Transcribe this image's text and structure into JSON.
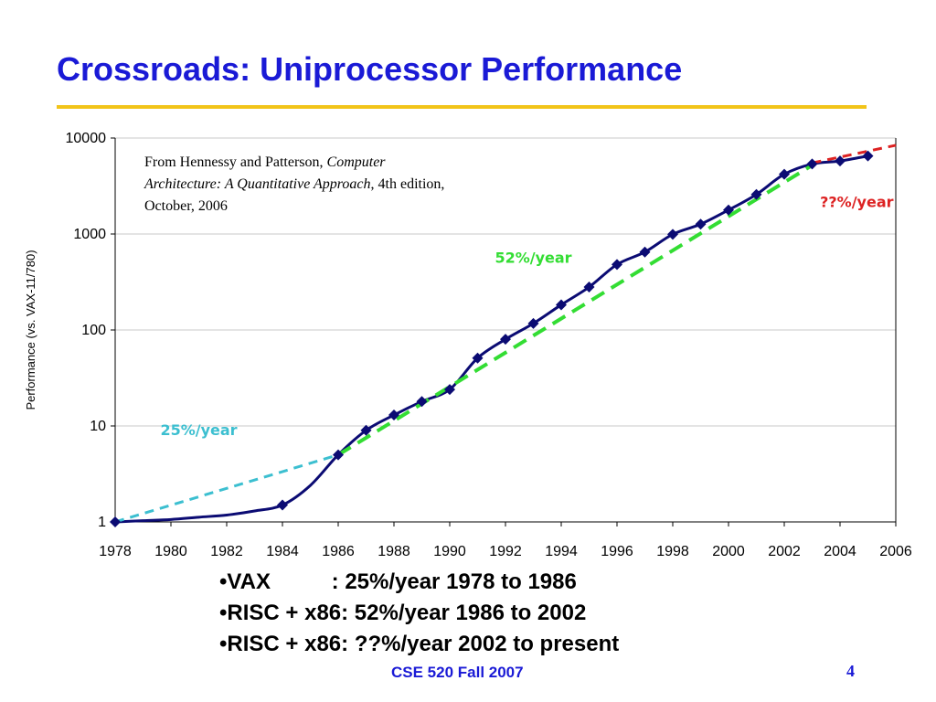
{
  "slide": {
    "title": "Crossroads: Uniprocessor Performance",
    "citation": {
      "prefix": "From Hennessy and Patterson, ",
      "book": "Computer Architecture: A Quantitative Approach",
      "suffix": ", 4th edition, October, 2006"
    },
    "bullets": [
      "VAX          : 25%/year 1978 to 1986",
      "RISC + x86: 52%/year 1986 to 2002",
      "RISC + x86: ??%/year 2002 to present"
    ],
    "footer": "CSE 520 Fall 2007",
    "page_number": "4"
  },
  "chart_data": {
    "type": "line",
    "title": "",
    "xlabel": "",
    "ylabel": "Performance (vs. VAX-11/780)",
    "yscale": "log",
    "xlim": [
      1978,
      2006
    ],
    "ylim": [
      1,
      10000
    ],
    "grid": "horizontal",
    "x_ticks": [
      "1978",
      "1980",
      "1982",
      "1984",
      "1986",
      "1988",
      "1990",
      "1992",
      "1994",
      "1996",
      "1998",
      "2000",
      "2002",
      "2004",
      "2006"
    ],
    "y_ticks": [
      "1",
      "10",
      "100",
      "1000",
      "10000"
    ],
    "series": [
      {
        "color": "#0b0b73",
        "marker": "diamond",
        "points": [
          {
            "x": 1978,
            "y": 1,
            "marker": true
          },
          {
            "x": 1979,
            "y": 1.03,
            "marker": false
          },
          {
            "x": 1980,
            "y": 1.06,
            "marker": false
          },
          {
            "x": 1981,
            "y": 1.12,
            "marker": false
          },
          {
            "x": 1982,
            "y": 1.18,
            "marker": false
          },
          {
            "x": 1983,
            "y": 1.3,
            "marker": false
          },
          {
            "x": 1984,
            "y": 1.5,
            "marker": true
          },
          {
            "x": 1985,
            "y": 2.4,
            "marker": false
          },
          {
            "x": 1986,
            "y": 5,
            "marker": true
          },
          {
            "x": 1987,
            "y": 9,
            "marker": true
          },
          {
            "x": 1988,
            "y": 13,
            "marker": true
          },
          {
            "x": 1989,
            "y": 18,
            "marker": true
          },
          {
            "x": 1990,
            "y": 24,
            "marker": true
          },
          {
            "x": 1991,
            "y": 51,
            "marker": true
          },
          {
            "x": 1992,
            "y": 80,
            "marker": true
          },
          {
            "x": 1993,
            "y": 117,
            "marker": true
          },
          {
            "x": 1994,
            "y": 183,
            "marker": true
          },
          {
            "x": 1995,
            "y": 280,
            "marker": true
          },
          {
            "x": 1996,
            "y": 481,
            "marker": true
          },
          {
            "x": 1997,
            "y": 649,
            "marker": true
          },
          {
            "x": 1998,
            "y": 993,
            "marker": true
          },
          {
            "x": 1999,
            "y": 1267,
            "marker": true
          },
          {
            "x": 2000,
            "y": 1779,
            "marker": true
          },
          {
            "x": 2001,
            "y": 2584,
            "marker": true
          },
          {
            "x": 2002,
            "y": 4195,
            "marker": true
          },
          {
            "x": 2003,
            "y": 5364,
            "marker": true
          },
          {
            "x": 2004,
            "y": 5764,
            "marker": true
          },
          {
            "x": 2005,
            "y": 6505,
            "marker": true
          }
        ]
      }
    ],
    "trend_lines": [
      {
        "label": "25%/year",
        "color": "#3cbfd0",
        "from": [
          1978,
          1
        ],
        "to": [
          1986,
          5
        ]
      },
      {
        "label": "52%/year",
        "color": "#33dd33",
        "from": [
          1986,
          5
        ],
        "to": [
          2003,
          5200
        ]
      },
      {
        "label": "??%/year",
        "color": "#dd2222",
        "from": [
          2003,
          5500
        ],
        "to": [
          2006,
          8400
        ]
      }
    ]
  }
}
